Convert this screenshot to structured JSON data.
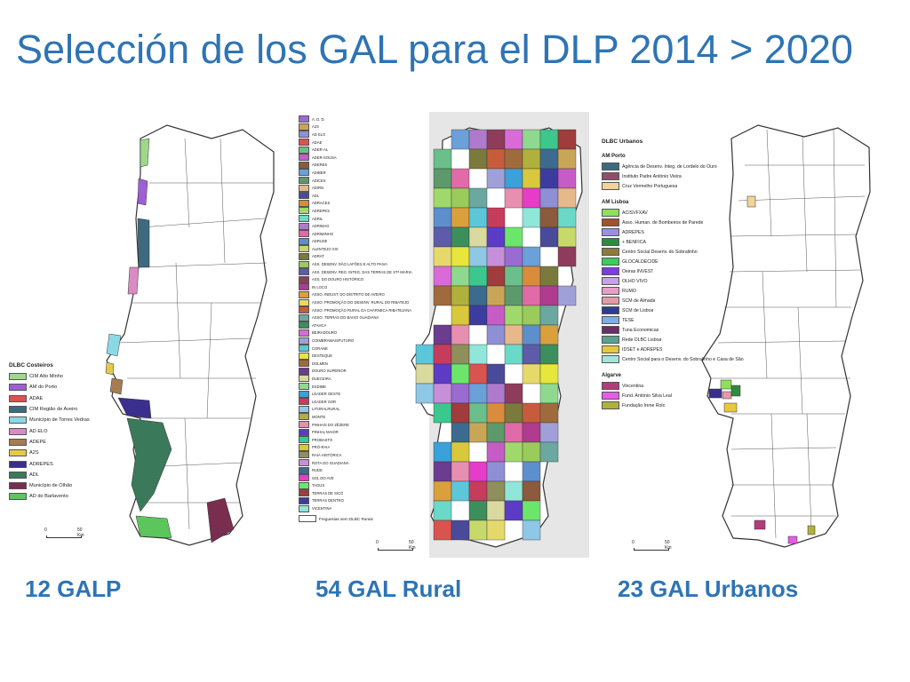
{
  "slide_title": "Selección de los GAL para el DLP 2014 > 2020",
  "map1": {
    "legend_title": "DLBC Costeiros",
    "items": [
      {
        "label": "CIM Alto Minho",
        "color": "#9ED98A"
      },
      {
        "label": "AM do Porto",
        "color": "#9F5FD6"
      },
      {
        "label": "ADAE",
        "color": "#D9534F"
      },
      {
        "label": "CIM Região de Aveiro",
        "color": "#3E6A80"
      },
      {
        "label": "Município de Torres Vedras",
        "color": "#8CD9E6"
      },
      {
        "label": "AD ELO",
        "color": "#D98CC4"
      },
      {
        "label": "ADEPE",
        "color": "#A67C52"
      },
      {
        "label": "A2S",
        "color": "#E6C84F"
      },
      {
        "label": "ADREPES",
        "color": "#3A2F8F"
      },
      {
        "label": "ADL",
        "color": "#3A7A5A"
      },
      {
        "label": "Município de Olhão",
        "color": "#7A2E4F"
      },
      {
        "label": "AD do Barlavento",
        "color": "#5CC65C"
      }
    ],
    "scale": {
      "zero": "0",
      "km": "50 Km"
    }
  },
  "map2": {
    "items": [
      {
        "label": "A. D. D.",
        "color": "#9A6BD1"
      },
      {
        "label": "A2S",
        "color": "#C9A657"
      },
      {
        "label": "AD ELO",
        "color": "#8F8FD6"
      },
      {
        "label": "ADAE",
        "color": "#D9534F"
      },
      {
        "label": "ADER-AL",
        "color": "#6BBF8A"
      },
      {
        "label": "ADER-SOUSA",
        "color": "#C75CC7"
      },
      {
        "label": "ADERES",
        "color": "#8C5A3C"
      },
      {
        "label": "ADIBER",
        "color": "#6BA0D9"
      },
      {
        "label": "ADICES",
        "color": "#5C9A6B"
      },
      {
        "label": "ADIRN",
        "color": "#E6B88A"
      },
      {
        "label": "ADL",
        "color": "#4A4A9A"
      },
      {
        "label": "ADRACES",
        "color": "#D98C3C"
      },
      {
        "label": "ADREPES",
        "color": "#A0D96B"
      },
      {
        "label": "ADRIL",
        "color": "#6BD9C7"
      },
      {
        "label": "ADRIMAG",
        "color": "#B07ACC"
      },
      {
        "label": "ADRIMINHO",
        "color": "#E06BA8"
      },
      {
        "label": "ADRUSE",
        "color": "#5C8FCC"
      },
      {
        "label": "ALENTEJO XXI",
        "color": "#C8D96B"
      },
      {
        "label": "ADRAT",
        "color": "#7A7A3C"
      },
      {
        "label": "ASS. DESENV. DÃO LAFÕES E ALTO PAIVA",
        "color": "#9ACC5C"
      },
      {
        "label": "ASS. DESENV. REG. INTEG. DAS TERRAS DE STª MARIA",
        "color": "#5C5CAA"
      },
      {
        "label": "ASS. DO DOURO HISTÓRICO",
        "color": "#8F3C5C"
      },
      {
        "label": "IN LOCO",
        "color": "#B03C8F"
      },
      {
        "label": "ASSO. INDUST. DO DISTRITO DE AVEIRO",
        "color": "#D9A03C"
      },
      {
        "label": "ASSO. PROMOÇÃO DO DESENV. RURAL DO RIBATEJO",
        "color": "#E6D96B"
      },
      {
        "label": "ASSO. PROMOÇÃO RURAL DA CHARNECA RIBATEJANA",
        "color": "#C75C3C"
      },
      {
        "label": "ASSO. TERRAS DO BAIXO GUADIANA",
        "color": "#6BA8A0"
      },
      {
        "label": "ATAHCA",
        "color": "#3C8F5C"
      },
      {
        "label": "BEIRADOURO",
        "color": "#D96BD9"
      },
      {
        "label": "COIMBRAMAISFUTURO",
        "color": "#A0A0D9"
      },
      {
        "label": "CORANE",
        "color": "#5CC7D9"
      },
      {
        "label": "DESTEQUE",
        "color": "#E6E63C"
      },
      {
        "label": "DOLMEN",
        "color": "#A06B3C"
      },
      {
        "label": "DOURO SUPERIOR",
        "color": "#6B3C8F"
      },
      {
        "label": "DUECEIRA",
        "color": "#D9D9A0"
      },
      {
        "label": "ESDIME",
        "color": "#8FD98F"
      },
      {
        "label": "LEADER OESTE",
        "color": "#3CA0D9"
      },
      {
        "label": "LEADER SOR",
        "color": "#C73C5C"
      },
      {
        "label": "LITORALRURAL",
        "color": "#8FC7E6"
      },
      {
        "label": "MONTE",
        "color": "#B0B03C"
      },
      {
        "label": "PINHAIS DO ZÊZERE",
        "color": "#E68FB0"
      },
      {
        "label": "PINHAL MAIOR",
        "color": "#5C3CC7"
      },
      {
        "label": "PROBASTO",
        "color": "#3CC78F"
      },
      {
        "label": "PRÓ-RAIA",
        "color": "#D9C73C"
      },
      {
        "label": "RAIA HISTÓRICA",
        "color": "#8F8F5C"
      },
      {
        "label": "ROTA DO GUADIANA",
        "color": "#C78FD9"
      },
      {
        "label": "RUDE",
        "color": "#3C6B8F"
      },
      {
        "label": "SOL DO AVE",
        "color": "#E63CC7"
      },
      {
        "label": "TAGUS",
        "color": "#6BE66B"
      },
      {
        "label": "TERRAS DE SICÓ",
        "color": "#A03C3C"
      },
      {
        "label": "TERRAS DENTRO",
        "color": "#3C3CA0"
      },
      {
        "label": "VICENTINA",
        "color": "#8FE6D9"
      }
    ],
    "no_dlbc": "Freguesias sem DLBC Rurais",
    "scale": {
      "zero": "0",
      "km": "50 Km"
    }
  },
  "map3": {
    "legend_title": "DLBC Urbanos",
    "groups": [
      {
        "title": "AM Porto",
        "items": [
          {
            "label": "Agência de Desenv. Integ. de Lordelo do Ouro",
            "color": "#3E6A80"
          },
          {
            "label": "Instituto Padre António Vieira",
            "color": "#8F4F6B"
          },
          {
            "label": "Cruz Vermelho Portuguesa",
            "color": "#F2D39A"
          }
        ]
      },
      {
        "title": "AM Lisboa",
        "items": [
          {
            "label": "ACISVFXAV",
            "color": "#8EE05A"
          },
          {
            "label": "Asso. Human. de Bombeiros de Parede",
            "color": "#A0522D"
          },
          {
            "label": "ADREPES",
            "color": "#9A8FE6"
          },
          {
            "label": "+ BENFICA",
            "color": "#2E8B3E"
          },
          {
            "label": "Centro Social Desenv. do Sobralinho",
            "color": "#8F7A3C"
          },
          {
            "label": "GLOCALDECIDE",
            "color": "#3CCB5C"
          },
          {
            "label": "Oeiras INVEST",
            "color": "#7A3CE6"
          },
          {
            "label": "OLHO VIVO",
            "color": "#C7A0E6"
          },
          {
            "label": "RUMO",
            "color": "#E6A0C7"
          },
          {
            "label": "SCM de Almada",
            "color": "#E69AA8"
          },
          {
            "label": "SCM de Lisboa",
            "color": "#2E3C8F"
          },
          {
            "label": "TESE",
            "color": "#7AB0E6"
          },
          {
            "label": "Tuna Economicas",
            "color": "#6B2E6B"
          },
          {
            "label": "Rede DLBC Lisboa",
            "color": "#5CA08F"
          },
          {
            "label": "IDSET e ADREPES",
            "color": "#E6C83C"
          },
          {
            "label": "Centro Social para o Desenv. do Sobralinho e Casa de São Pedro de Alverca",
            "color": "#A0E6D9"
          }
        ]
      },
      {
        "title": "Algarve",
        "items": [
          {
            "label": "Vincentina",
            "color": "#B03C7A"
          },
          {
            "label": "Fund. António Silva Leal",
            "color": "#E65CE6"
          },
          {
            "label": "Fundação Irene Rolo",
            "color": "#B0B03C"
          }
        ]
      }
    ],
    "scale": {
      "zero": "0",
      "km": "50 Km"
    }
  },
  "captions": {
    "galp": "12 GALP",
    "rural": "54 GAL Rural",
    "urbanos": "23 GAL Urbanos"
  }
}
